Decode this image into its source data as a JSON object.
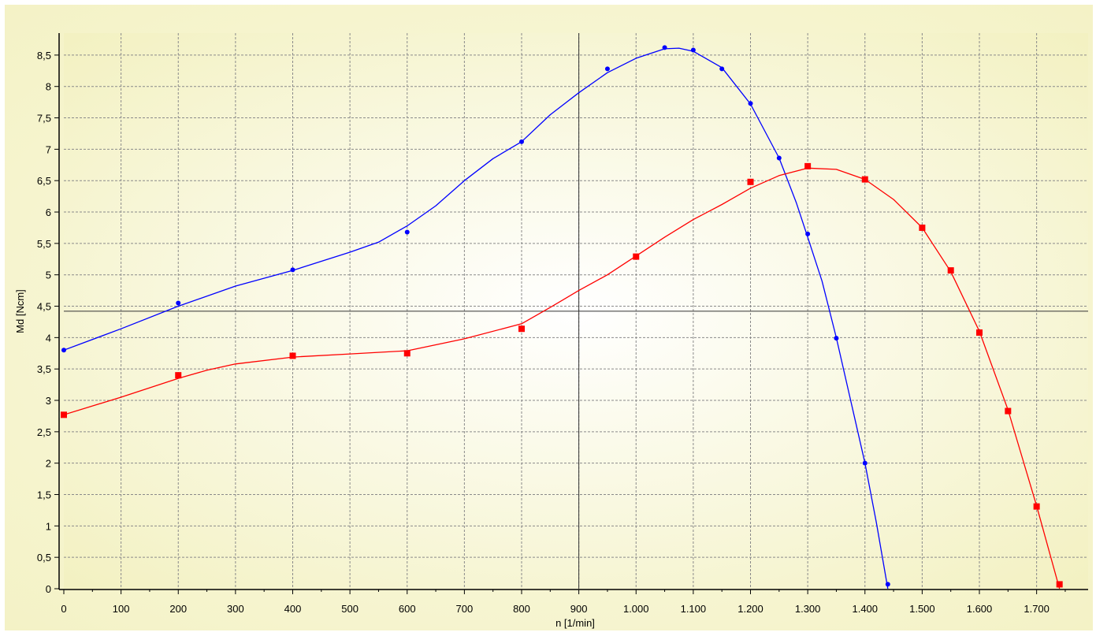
{
  "chart_data": {
    "type": "line",
    "xlabel": "n [1/min]",
    "ylabel": "Md [Ncm]",
    "xlim": [
      0,
      1790
    ],
    "ylim": [
      0,
      8.85
    ],
    "xticks": [
      0,
      100,
      200,
      300,
      400,
      500,
      600,
      700,
      800,
      900,
      1000,
      1100,
      1200,
      1300,
      1400,
      1500,
      1600,
      1700
    ],
    "xtick_labels": [
      "0",
      "100",
      "200",
      "300",
      "400",
      "500",
      "600",
      "700",
      "800",
      "900",
      "1.000",
      "1.100",
      "1.200",
      "1.300",
      "1.400",
      "1.500",
      "1.600",
      "1.700"
    ],
    "yticks": [
      0,
      0.5,
      1,
      1.5,
      2,
      2.5,
      3,
      3.5,
      4,
      4.5,
      5,
      5.5,
      6,
      6.5,
      7,
      7.5,
      8,
      8.5
    ],
    "ytick_labels": [
      "0",
      "0,5",
      "1",
      "1,5",
      "2",
      "2,5",
      "3",
      "3,5",
      "4",
      "4,5",
      "5",
      "5,5",
      "6",
      "6,5",
      "7",
      "7,5",
      "8",
      "8,5"
    ],
    "grid": true,
    "crosshair": {
      "x": 900,
      "y": 4.42
    },
    "series": [
      {
        "color": "#0000ff",
        "marker": "dot",
        "points": [
          [
            0,
            3.8
          ],
          [
            200,
            4.55
          ],
          [
            400,
            5.08
          ],
          [
            600,
            5.68
          ],
          [
            800,
            7.12
          ],
          [
            950,
            8.28
          ],
          [
            1050,
            8.62
          ],
          [
            1100,
            8.58
          ],
          [
            1150,
            8.28
          ],
          [
            1200,
            7.73
          ],
          [
            1250,
            6.86
          ],
          [
            1300,
            5.65
          ],
          [
            1350,
            3.99
          ],
          [
            1400,
            2.0
          ],
          [
            1440,
            0.07
          ]
        ],
        "curve": [
          [
            0,
            3.8
          ],
          [
            100,
            4.14
          ],
          [
            200,
            4.5
          ],
          [
            300,
            4.82
          ],
          [
            400,
            5.07
          ],
          [
            500,
            5.36
          ],
          [
            550,
            5.52
          ],
          [
            600,
            5.78
          ],
          [
            650,
            6.1
          ],
          [
            700,
            6.5
          ],
          [
            750,
            6.85
          ],
          [
            800,
            7.12
          ],
          [
            850,
            7.55
          ],
          [
            900,
            7.9
          ],
          [
            950,
            8.22
          ],
          [
            1000,
            8.45
          ],
          [
            1050,
            8.6
          ],
          [
            1075,
            8.61
          ],
          [
            1100,
            8.56
          ],
          [
            1150,
            8.3
          ],
          [
            1200,
            7.72
          ],
          [
            1250,
            6.86
          ],
          [
            1280,
            6.15
          ],
          [
            1300,
            5.6
          ],
          [
            1325,
            4.9
          ],
          [
            1350,
            4.0
          ],
          [
            1375,
            3.0
          ],
          [
            1400,
            2.0
          ],
          [
            1420,
            1.05
          ],
          [
            1440,
            0.0
          ]
        ]
      },
      {
        "color": "#ff0000",
        "marker": "square",
        "points": [
          [
            0,
            2.77
          ],
          [
            200,
            3.4
          ],
          [
            400,
            3.71
          ],
          [
            600,
            3.75
          ],
          [
            800,
            4.14
          ],
          [
            1000,
            5.29
          ],
          [
            1200,
            6.48
          ],
          [
            1300,
            6.73
          ],
          [
            1400,
            6.52
          ],
          [
            1500,
            5.75
          ],
          [
            1550,
            5.07
          ],
          [
            1600,
            4.08
          ],
          [
            1650,
            2.83
          ],
          [
            1700,
            1.31
          ],
          [
            1740,
            0.07
          ]
        ],
        "curve": [
          [
            0,
            2.77
          ],
          [
            100,
            3.05
          ],
          [
            200,
            3.35
          ],
          [
            250,
            3.48
          ],
          [
            300,
            3.58
          ],
          [
            400,
            3.69
          ],
          [
            500,
            3.74
          ],
          [
            600,
            3.79
          ],
          [
            700,
            3.98
          ],
          [
            800,
            4.22
          ],
          [
            850,
            4.48
          ],
          [
            900,
            4.75
          ],
          [
            950,
            5.0
          ],
          [
            1000,
            5.3
          ],
          [
            1050,
            5.6
          ],
          [
            1100,
            5.88
          ],
          [
            1150,
            6.12
          ],
          [
            1200,
            6.38
          ],
          [
            1250,
            6.58
          ],
          [
            1300,
            6.7
          ],
          [
            1350,
            6.68
          ],
          [
            1400,
            6.52
          ],
          [
            1450,
            6.2
          ],
          [
            1500,
            5.75
          ],
          [
            1550,
            5.05
          ],
          [
            1600,
            4.1
          ],
          [
            1650,
            2.85
          ],
          [
            1700,
            1.32
          ],
          [
            1740,
            0.0
          ]
        ]
      }
    ]
  }
}
